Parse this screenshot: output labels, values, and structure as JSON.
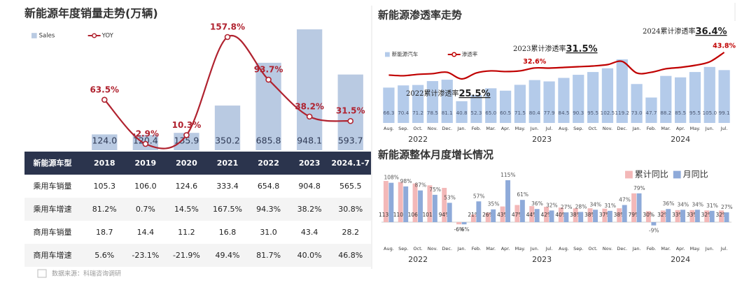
{
  "chart_data": [
    {
      "type": "bar",
      "title": "新能源年度销量走势(万辆)",
      "categories": [
        "2018",
        "2019",
        "2020",
        "2021",
        "2022",
        "2023",
        "2024.1-7"
      ],
      "series": [
        {
          "name": "Sales",
          "color": "#b9cae2",
          "values": [
            124.0,
            120.4,
            135.9,
            350.2,
            685.8,
            948.1,
            593.7
          ],
          "value_labels": [
            "124.0",
            "120.4",
            "135.9",
            "350.2",
            "685.8",
            "948.1",
            "593.7"
          ]
        },
        {
          "name": "YOY",
          "type": "line",
          "color": "#b0222f",
          "values": [
            63.5,
            -2.9,
            10.3,
            157.8,
            93.7,
            38.2,
            31.5
          ],
          "value_labels": [
            "63.5%",
            "-2.9%",
            "10.3%",
            "157.8%",
            "93.7%",
            "38.2%",
            "31.5%"
          ]
        }
      ]
    },
    {
      "type": "bar",
      "title": "新能源渗透率走势",
      "categories": [
        "Aug.",
        "Sep.",
        "Oct.",
        "Nov.",
        "Dec.",
        "Jan.",
        "Feb.",
        "Mar.",
        "Apr.",
        "May.",
        "Jun.",
        "Jul.",
        "Aug.",
        "Sep.",
        "Oct.",
        "Nov.",
        "Dec.",
        "Jan.",
        "Feb.",
        "Mar.",
        "Apr.",
        "May.",
        "Jun.",
        "Jul."
      ],
      "years": [
        "2022",
        "2023",
        "2024"
      ],
      "series": [
        {
          "name": "新能源汽车",
          "color": "#b4cbea",
          "values": [
            66.3,
            70.4,
            71.2,
            78.5,
            81.1,
            40.8,
            52.3,
            65.0,
            60.5,
            71.5,
            80.4,
            77.9,
            84.5,
            90.3,
            95.5,
            102.5,
            119.2,
            73.0,
            47.7,
            88.2,
            85.5,
            95.5,
            105.0,
            99.1
          ],
          "value_labels": [
            "66.3",
            "70.4",
            "71.2",
            "78.5",
            "81.1",
            "40.8",
            "52.3",
            "65.0",
            "60.5",
            "71.5",
            "80.4",
            "77.9",
            "84.5",
            "90.3",
            "95.5",
            "102.5",
            "119.2",
            "73.0",
            "47.7",
            "88.2",
            "85.5",
            "95.5",
            "105.0",
            "99.1"
          ]
        },
        {
          "name": "渗透率",
          "type": "line",
          "color": "#c00000",
          "values": [
            27.5,
            27.0,
            28.0,
            28.5,
            29.5,
            24.7,
            29.0,
            30.5,
            30.0,
            30.5,
            32.6,
            32.5,
            33.0,
            33.5,
            34.0,
            35.0,
            37.3,
            29.0,
            29.5,
            32.0,
            33.0,
            34.5,
            37.0,
            43.8
          ],
          "value_labels": [
            null,
            null,
            null,
            null,
            null,
            null,
            null,
            null,
            null,
            null,
            "32.6%",
            null,
            null,
            null,
            null,
            null,
            null,
            null,
            null,
            null,
            null,
            null,
            null,
            "43.8%"
          ]
        }
      ],
      "annotations": [
        {
          "text": "2022累计渗透率",
          "value": "25.5%"
        },
        {
          "text": "2023累计渗透率",
          "value": "31.5%"
        },
        {
          "text": "2024累计渗透率",
          "value": "36.4%"
        }
      ]
    },
    {
      "type": "bar",
      "title": "新能源整体月度增长情况",
      "categories": [
        "Aug.",
        "Sep.",
        "Oct.",
        "Nov.",
        "Dec.",
        "Jan.",
        "Feb.",
        "Mar.",
        "Apr.",
        "May.",
        "Jun.",
        "Jul.",
        "Aug.",
        "Sep.",
        "Oct.",
        "Nov.",
        "Dec.",
        "Jan.",
        "Feb.",
        "Mar.",
        "Apr.",
        "May.",
        "Jun.",
        "Jul."
      ],
      "years": [
        "2022",
        "2023",
        "2024"
      ],
      "series": [
        {
          "name": "累计同比",
          "color": "#f3b8b8",
          "values": [
            113,
            110,
            106,
            101,
            94,
            -6,
            21,
            26,
            43,
            47,
            44,
            42,
            40,
            38,
            38,
            37,
            38,
            79,
            30,
            32,
            33,
            33,
            32,
            32
          ],
          "value_labels": [
            "113%",
            "110%",
            "106%",
            "101%",
            "94%",
            "-6%",
            "21%",
            "26%",
            "43%",
            "47%",
            "44%",
            "42%",
            "40%",
            "38%",
            "38%",
            "37%",
            "38%",
            "79%",
            "30%",
            "32%",
            "33%",
            "33%",
            "32%",
            "32%"
          ]
        },
        {
          "name": "月同比",
          "color": "#8eaad9",
          "values": [
            108,
            98,
            87,
            75,
            53,
            -6,
            57,
            35,
            115,
            61,
            36,
            32,
            27,
            28,
            34,
            31,
            47,
            79,
            -9,
            36,
            34,
            34,
            31,
            27
          ],
          "value_labels": [
            "108%",
            "98%",
            "87%",
            "75%",
            "53%",
            "-6%",
            "57%",
            "35%",
            "115%",
            "61%",
            "36%",
            "32%",
            "27%",
            "28%",
            "34%",
            "31%",
            "47%",
            "79%",
            "-9%",
            "36%",
            "34%",
            "34%",
            "31%",
            "27%"
          ]
        }
      ]
    }
  ],
  "table": {
    "corner": "新能源车型",
    "rows": [
      {
        "label": "乘用车销量",
        "cells": [
          "105.3",
          "106.0",
          "124.6",
          "333.4",
          "654.8",
          "904.8",
          "565.5"
        ]
      },
      {
        "label": "乘用车增速",
        "cells": [
          "81.2%",
          "0.7%",
          "14.5%",
          "167.5%",
          "94.3%",
          "38.2%",
          "30.8%"
        ]
      },
      {
        "label": "商用车销量",
        "cells": [
          "18.7",
          "14.4",
          "11.2",
          "16.8",
          "31.0",
          "43.4",
          "28.2"
        ]
      },
      {
        "label": "商用车增速",
        "cells": [
          "5.6%",
          "-23.1%",
          "-21.9%",
          "49.4%",
          "81.7%",
          "40.0%",
          "46.8%"
        ]
      }
    ]
  },
  "source": "数据来源：科瑞咨询调研"
}
